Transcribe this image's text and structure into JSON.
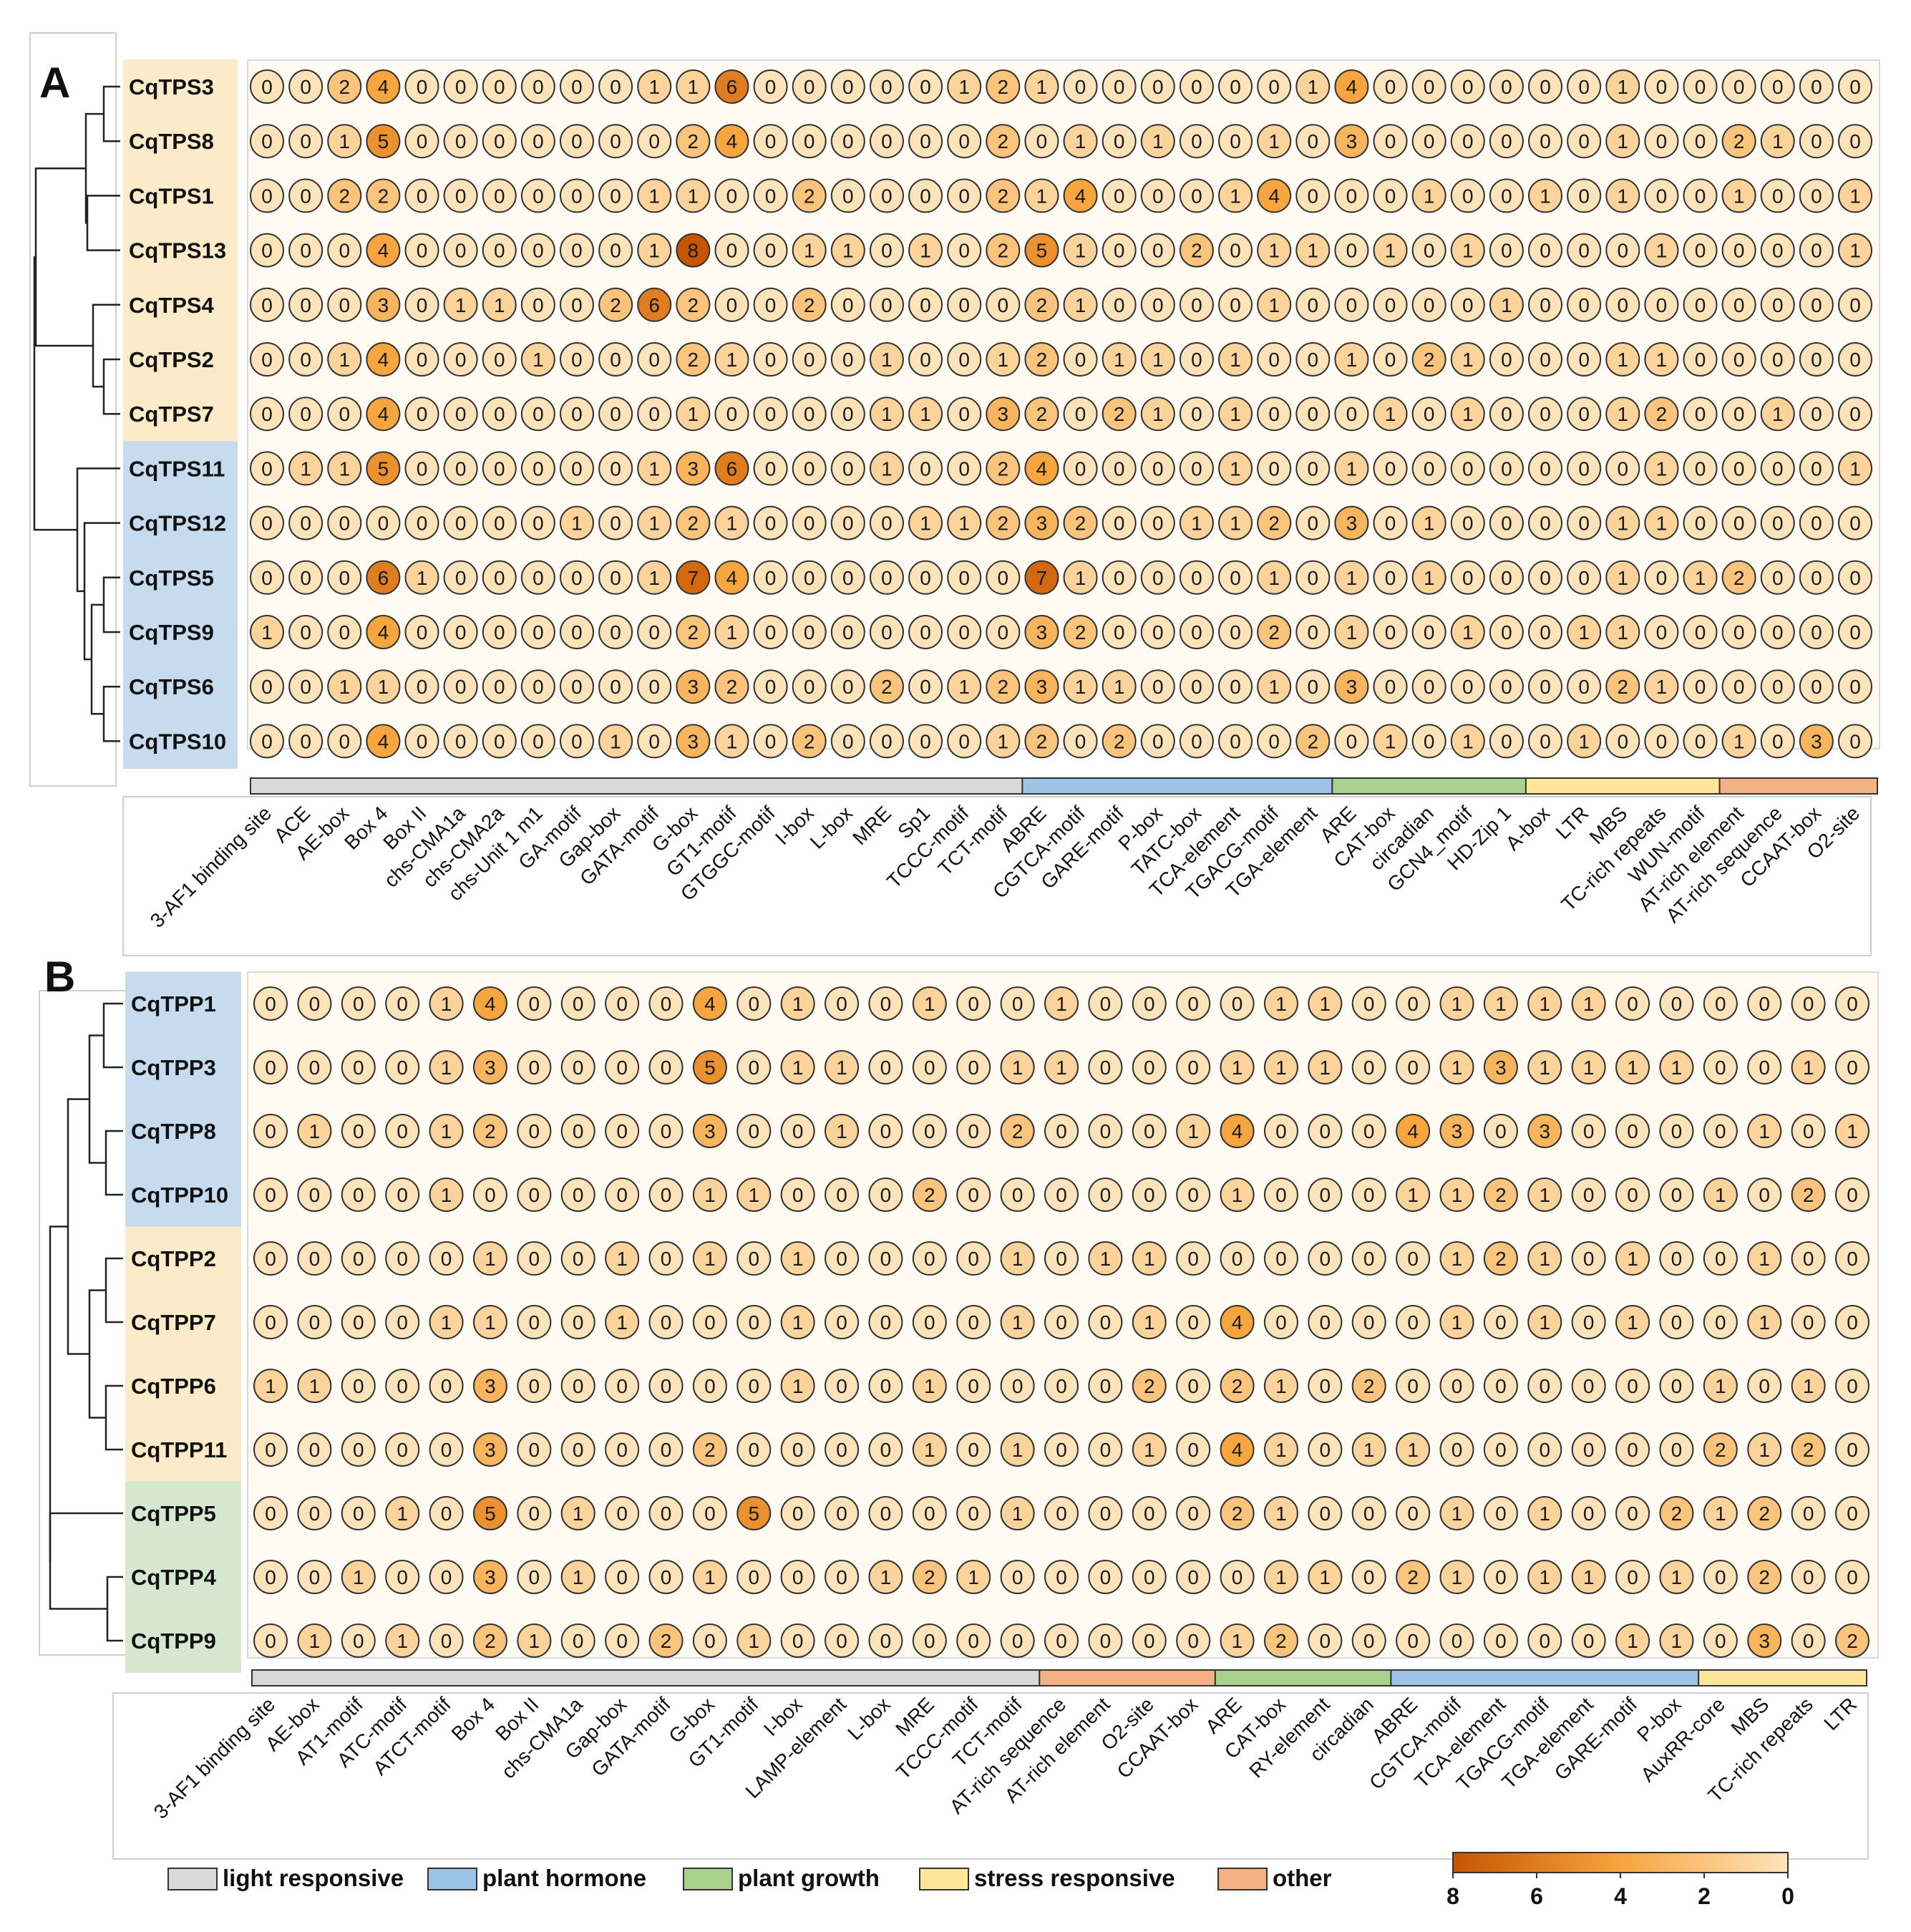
{
  "colors": {
    "scale_high": "#c65400",
    "scale_mid": "#f7a53f",
    "scale_low": "#fde3ba",
    "tps_group_a": "#fcebc8",
    "tps_group_b": "#c7dbee",
    "tpp_group_c": "#d6e8cf"
  },
  "legend": [
    {
      "label": "light responsive",
      "color": "#d9d9d9"
    },
    {
      "label": "plant hormone",
      "color": "#9dc3e6"
    },
    {
      "label": "plant growth",
      "color": "#a9d18e"
    },
    {
      "label": "stress responsive",
      "color": "#ffe699"
    },
    {
      "label": "other",
      "color": "#f4b183"
    }
  ],
  "colorbar": {
    "ticks": [
      "8",
      "6",
      "4",
      "2",
      "0"
    ]
  },
  "chart_data": [
    {
      "type": "heatmap",
      "panel": "A",
      "rows": [
        "CqTPS3",
        "CqTPS8",
        "CqTPS1",
        "CqTPS13",
        "CqTPS4",
        "CqTPS2",
        "CqTPS7",
        "CqTPS11",
        "CqTPS12",
        "CqTPS5",
        "CqTPS9",
        "CqTPS6",
        "CqTPS10"
      ],
      "row_groups": [
        "a",
        "a",
        "a",
        "a",
        "a",
        "a",
        "a",
        "b",
        "b",
        "b",
        "b",
        "b",
        "b"
      ],
      "columns": [
        "3-AF1 binding site",
        "ACE",
        "AE-box",
        "Box 4",
        "Box II",
        "chs-CMA1a",
        "chs-CMA2a",
        "chs-Unit 1 m1",
        "GA-motif",
        "Gap-box",
        "GATA-motif",
        "G-box",
        "GT1-motif",
        "GTGGC-motif",
        "I-box",
        "L-box",
        "MRE",
        "Sp1",
        "TCCC-motif",
        "TCT-motif",
        "ABRE",
        "CGTCA-motif",
        "GARE-motif",
        "P-box",
        "TATC-box",
        "TCA-element",
        "TGACG-motif",
        "TGA-element",
        "ARE",
        "CAT-box",
        "circadian",
        "GCN4_motif",
        "HD-Zip 1",
        "A-box",
        "LTR",
        "MBS",
        "TC-rich repeats",
        "WUN-motif",
        "AT-rich element",
        "AT-rich sequence",
        "CCAAT-box",
        "O2-site"
      ],
      "categories": [
        {
          "name": "light responsive",
          "count": 20
        },
        {
          "name": "plant hormone",
          "count": 8
        },
        {
          "name": "plant growth",
          "count": 5
        },
        {
          "name": "stress responsive",
          "count": 5
        },
        {
          "name": "other",
          "count": 4
        }
      ],
      "values": [
        [
          0,
          0,
          2,
          4,
          0,
          0,
          0,
          0,
          0,
          0,
          1,
          1,
          6,
          0,
          0,
          0,
          0,
          0,
          1,
          2,
          1,
          0,
          0,
          0,
          0,
          0,
          0,
          1,
          4,
          0,
          0,
          0,
          0,
          0,
          0,
          1,
          0,
          0,
          0,
          0,
          0,
          0
        ],
        [
          0,
          0,
          1,
          5,
          0,
          0,
          0,
          0,
          0,
          0,
          0,
          2,
          4,
          0,
          0,
          0,
          0,
          0,
          0,
          2,
          0,
          1,
          0,
          1,
          0,
          0,
          1,
          0,
          3,
          0,
          0,
          0,
          0,
          0,
          0,
          1,
          0,
          0,
          2,
          1,
          0,
          0
        ],
        [
          0,
          0,
          2,
          2,
          0,
          0,
          0,
          0,
          0,
          0,
          1,
          1,
          0,
          0,
          2,
          0,
          0,
          0,
          0,
          2,
          1,
          4,
          0,
          0,
          0,
          1,
          4,
          0,
          0,
          0,
          1,
          0,
          0,
          1,
          0,
          1,
          0,
          0,
          1,
          0,
          0,
          1
        ],
        [
          0,
          0,
          0,
          4,
          0,
          0,
          0,
          0,
          0,
          0,
          1,
          8,
          0,
          0,
          1,
          1,
          0,
          1,
          0,
          2,
          5,
          1,
          0,
          0,
          2,
          0,
          1,
          1,
          0,
          1,
          0,
          1,
          0,
          0,
          0,
          0,
          1,
          0,
          0,
          0,
          0,
          1
        ],
        [
          0,
          0,
          0,
          3,
          0,
          1,
          1,
          0,
          0,
          2,
          6,
          2,
          0,
          0,
          2,
          0,
          0,
          0,
          0,
          0,
          2,
          1,
          0,
          0,
          0,
          0,
          1,
          0,
          0,
          0,
          0,
          0,
          1,
          0,
          0,
          0,
          0,
          0,
          0,
          0,
          0,
          0
        ],
        [
          0,
          0,
          1,
          4,
          0,
          0,
          0,
          1,
          0,
          0,
          0,
          2,
          1,
          0,
          0,
          0,
          1,
          0,
          0,
          1,
          2,
          0,
          1,
          1,
          0,
          1,
          0,
          0,
          1,
          0,
          2,
          1,
          0,
          0,
          0,
          1,
          1,
          0,
          0,
          0,
          0,
          0
        ],
        [
          0,
          0,
          0,
          4,
          0,
          0,
          0,
          0,
          0,
          0,
          0,
          1,
          0,
          0,
          0,
          0,
          1,
          1,
          0,
          3,
          2,
          0,
          2,
          1,
          0,
          1,
          0,
          0,
          0,
          1,
          0,
          1,
          0,
          0,
          0,
          1,
          2,
          0,
          0,
          1,
          0,
          0
        ],
        [
          0,
          1,
          1,
          5,
          0,
          0,
          0,
          0,
          0,
          0,
          1,
          3,
          6,
          0,
          0,
          0,
          1,
          0,
          0,
          2,
          4,
          0,
          0,
          0,
          0,
          1,
          0,
          0,
          1,
          0,
          0,
          0,
          0,
          0,
          0,
          0,
          1,
          0,
          0,
          0,
          0,
          1
        ],
        [
          0,
          0,
          0,
          0,
          0,
          0,
          0,
          0,
          1,
          0,
          1,
          2,
          1,
          0,
          0,
          0,
          0,
          1,
          1,
          2,
          3,
          2,
          0,
          0,
          1,
          1,
          2,
          0,
          3,
          0,
          1,
          0,
          0,
          0,
          0,
          1,
          1,
          0,
          0,
          0,
          0,
          0
        ],
        [
          0,
          0,
          0,
          6,
          1,
          0,
          0,
          0,
          0,
          0,
          1,
          7,
          4,
          0,
          0,
          0,
          0,
          0,
          0,
          0,
          7,
          1,
          0,
          0,
          0,
          0,
          1,
          0,
          1,
          0,
          1,
          0,
          0,
          0,
          0,
          1,
          0,
          1,
          2,
          0,
          0,
          0
        ],
        [
          1,
          0,
          0,
          4,
          0,
          0,
          0,
          0,
          0,
          0,
          0,
          2,
          1,
          0,
          0,
          0,
          0,
          0,
          0,
          0,
          3,
          2,
          0,
          0,
          0,
          0,
          2,
          0,
          1,
          0,
          0,
          1,
          0,
          0,
          1,
          1,
          0,
          0,
          0,
          0,
          0,
          0
        ],
        [
          0,
          0,
          1,
          1,
          0,
          0,
          0,
          0,
          0,
          0,
          0,
          3,
          2,
          0,
          0,
          0,
          2,
          0,
          1,
          2,
          3,
          1,
          1,
          0,
          0,
          0,
          1,
          0,
          3,
          0,
          0,
          0,
          0,
          0,
          0,
          2,
          1,
          0,
          0,
          0,
          0,
          0
        ],
        [
          0,
          0,
          0,
          4,
          0,
          0,
          0,
          0,
          0,
          1,
          0,
          3,
          1,
          0,
          2,
          0,
          0,
          0,
          0,
          1,
          2,
          0,
          2,
          0,
          0,
          0,
          0,
          2,
          0,
          1,
          0,
          1,
          0,
          0,
          1,
          0,
          0,
          0,
          1,
          0,
          3,
          0
        ]
      ]
    },
    {
      "type": "heatmap",
      "panel": "B",
      "rows": [
        "CqTPP1",
        "CqTPP3",
        "CqTPP8",
        "CqTPP10",
        "CqTPP2",
        "CqTPP7",
        "CqTPP6",
        "CqTPP11",
        "CqTPP5",
        "CqTPP4",
        "CqTPP9"
      ],
      "row_groups": [
        "b",
        "b",
        "b",
        "b",
        "a",
        "a",
        "a",
        "a",
        "c",
        "c",
        "c"
      ],
      "columns": [
        "3-AF1 binding site",
        "AE-box",
        "AT1-motif",
        "ATC-motif",
        "ATCT-motif",
        "Box 4",
        "Box II",
        "chs-CMA1a",
        "Gap-box",
        "GATA-motif",
        "G-box",
        "GT1-motif",
        "I-box",
        "LAMP-element",
        "L-box",
        "MRE",
        "TCCC-motif",
        "TCT-motif",
        "AT-rich sequence",
        "AT-rich element",
        "O2-site",
        "CCAAT-box",
        "ARE",
        "CAT-box",
        "RY-element",
        "circadian",
        "ABRE",
        "CGTCA-motif",
        "TCA-element",
        "TGACG-motif",
        "TGA-element",
        "GARE-motif",
        "P-box",
        "AuxRR-core",
        "MBS",
        "TC-rich repeats",
        "LTR"
      ],
      "categories": [
        {
          "name": "light responsive",
          "count": 18
        },
        {
          "name": "other",
          "count": 4
        },
        {
          "name": "plant growth",
          "count": 4
        },
        {
          "name": "plant hormone",
          "count": 7
        },
        {
          "name": "stress responsive",
          "count": 4
        }
      ],
      "values": [
        [
          0,
          0,
          0,
          0,
          1,
          4,
          0,
          0,
          0,
          0,
          4,
          0,
          1,
          0,
          0,
          1,
          0,
          0,
          1,
          0,
          0,
          0,
          0,
          1,
          1,
          0,
          0,
          1,
          1,
          1,
          1,
          0,
          0,
          0,
          0,
          0,
          0
        ],
        [
          0,
          0,
          0,
          0,
          1,
          3,
          0,
          0,
          0,
          0,
          5,
          0,
          1,
          1,
          0,
          0,
          0,
          1,
          1,
          0,
          0,
          0,
          1,
          1,
          1,
          0,
          0,
          1,
          3,
          1,
          1,
          1,
          1,
          0,
          0,
          1,
          0
        ],
        [
          0,
          1,
          0,
          0,
          1,
          2,
          0,
          0,
          0,
          0,
          3,
          0,
          0,
          1,
          0,
          0,
          0,
          2,
          0,
          0,
          0,
          1,
          4,
          0,
          0,
          0,
          4,
          3,
          0,
          3,
          0,
          0,
          0,
          0,
          1,
          0,
          1
        ],
        [
          0,
          0,
          0,
          0,
          1,
          0,
          0,
          0,
          0,
          0,
          1,
          1,
          0,
          0,
          0,
          2,
          0,
          0,
          0,
          0,
          0,
          0,
          1,
          0,
          0,
          0,
          1,
          1,
          2,
          1,
          0,
          0,
          0,
          1,
          0,
          2,
          0
        ],
        [
          0,
          0,
          0,
          0,
          0,
          1,
          0,
          0,
          1,
          0,
          1,
          0,
          1,
          0,
          0,
          0,
          0,
          1,
          0,
          1,
          1,
          0,
          0,
          0,
          0,
          0,
          0,
          1,
          2,
          1,
          0,
          1,
          0,
          0,
          1,
          0,
          0
        ],
        [
          0,
          0,
          0,
          0,
          1,
          1,
          0,
          0,
          1,
          0,
          0,
          0,
          1,
          0,
          0,
          0,
          0,
          1,
          0,
          0,
          1,
          0,
          4,
          0,
          0,
          0,
          0,
          1,
          0,
          1,
          0,
          1,
          0,
          0,
          1,
          0,
          0
        ],
        [
          1,
          1,
          0,
          0,
          0,
          3,
          0,
          0,
          0,
          0,
          0,
          0,
          1,
          0,
          0,
          1,
          0,
          0,
          0,
          0,
          2,
          0,
          2,
          1,
          0,
          2,
          0,
          0,
          0,
          0,
          0,
          0,
          0,
          1,
          0,
          1,
          0
        ],
        [
          0,
          0,
          0,
          0,
          0,
          3,
          0,
          0,
          0,
          0,
          2,
          0,
          0,
          0,
          0,
          1,
          0,
          1,
          0,
          0,
          1,
          0,
          4,
          1,
          0,
          1,
          1,
          0,
          0,
          0,
          0,
          0,
          0,
          2,
          1,
          2,
          0
        ],
        [
          0,
          0,
          0,
          1,
          0,
          5,
          0,
          1,
          0,
          0,
          0,
          5,
          0,
          0,
          0,
          0,
          0,
          1,
          0,
          0,
          0,
          0,
          2,
          1,
          0,
          0,
          0,
          1,
          0,
          1,
          0,
          0,
          2,
          1,
          2,
          0,
          0
        ],
        [
          0,
          0,
          1,
          0,
          0,
          3,
          0,
          1,
          0,
          0,
          1,
          0,
          0,
          0,
          1,
          2,
          1,
          0,
          0,
          0,
          0,
          0,
          0,
          1,
          1,
          0,
          2,
          1,
          0,
          1,
          1,
          0,
          1,
          0,
          2,
          0,
          0
        ],
        [
          0,
          1,
          0,
          1,
          0,
          2,
          1,
          0,
          0,
          2,
          0,
          1,
          0,
          0,
          0,
          0,
          0,
          0,
          0,
          0,
          0,
          0,
          1,
          2,
          0,
          0,
          0,
          0,
          0,
          0,
          0,
          1,
          1,
          0,
          3,
          0,
          2
        ]
      ]
    }
  ]
}
